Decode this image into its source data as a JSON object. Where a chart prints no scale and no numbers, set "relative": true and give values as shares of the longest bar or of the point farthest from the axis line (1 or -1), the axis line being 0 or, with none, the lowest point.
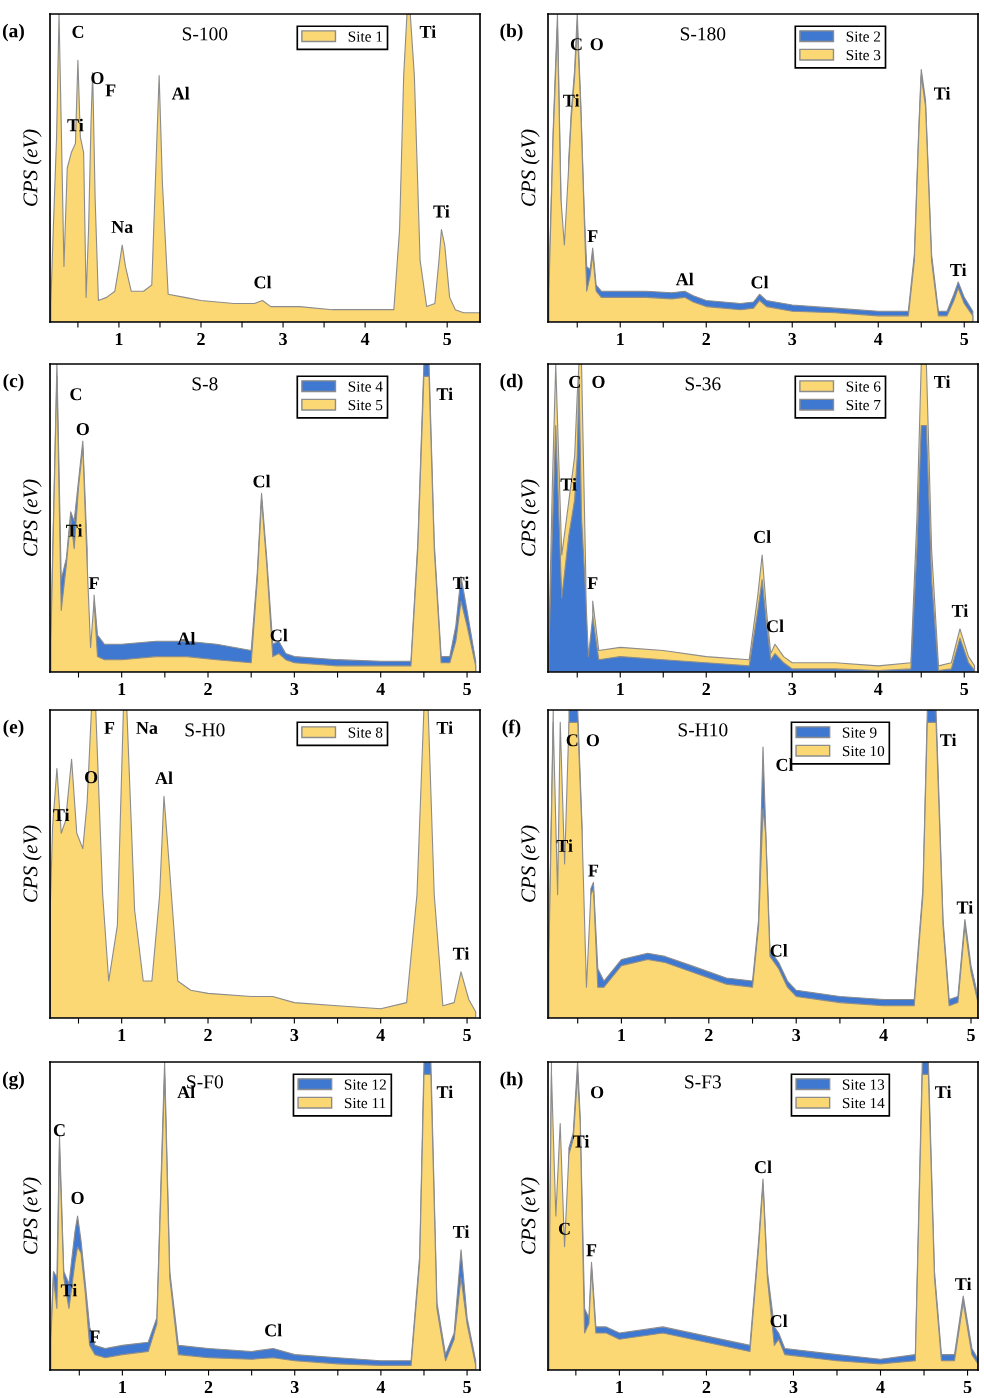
{
  "chart_data": [
    {
      "type": "area",
      "relative": true,
      "title": "S-100",
      "ylabel": "CPS (eV)",
      "legend": "top",
      "tick_labels": "x",
      "xlim": [
        0.16,
        5.4
      ],
      "xticks": [
        {
          "value": 0.5,
          "label": null
        },
        1,
        {
          "value": 1.5,
          "label": null
        },
        2,
        {
          "value": 2.5,
          "label": null
        },
        3,
        {
          "value": 3.5,
          "label": null
        },
        4,
        {
          "value": 4.5,
          "label": null
        },
        5
      ],
      "x": [
        0.17,
        0.2,
        0.24,
        0.27,
        0.3,
        0.33,
        0.37,
        0.42,
        0.47,
        0.5,
        0.53,
        0.57,
        0.6,
        0.63,
        0.66,
        0.68,
        0.71,
        0.75,
        0.85,
        0.95,
        1.0,
        1.04,
        1.08,
        1.15,
        1.3,
        1.4,
        1.45,
        1.49,
        1.53,
        1.6,
        1.8,
        2.0,
        2.4,
        2.65,
        2.75,
        2.85,
        3.2,
        3.6,
        4.0,
        4.35,
        4.42,
        4.47,
        4.51,
        4.55,
        4.6,
        4.67,
        4.75,
        4.85,
        4.9,
        4.93,
        4.97,
        5.03,
        5.1,
        5.2,
        5.4
      ],
      "series": [
        {
          "name": "Site 1",
          "color": "#fbd874",
          "values": [
            0.06,
            0.3,
            0.6,
            1,
            0.6,
            0.18,
            0.5,
            0.55,
            0.58,
            0.85,
            0.6,
            0.55,
            0.08,
            0.3,
            0.65,
            0.81,
            0.4,
            0.07,
            0.08,
            0.1,
            0.18,
            0.25,
            0.18,
            0.1,
            0.1,
            0.12,
            0.5,
            0.8,
            0.45,
            0.09,
            0.08,
            0.07,
            0.06,
            0.06,
            0.07,
            0.05,
            0.05,
            0.04,
            0.04,
            0.04,
            0.3,
            0.8,
            1,
            1,
            0.8,
            0.2,
            0.05,
            0.06,
            0.2,
            0.3,
            0.25,
            0.08,
            0.04,
            0.03,
            0.03
          ]
        }
      ],
      "annotations": [
        "(a)",
        {
          "text": "C",
          "x": 0.27,
          "y": 1
        },
        {
          "text": "O",
          "x": 0.5,
          "y": 0.85
        },
        {
          "text": "F",
          "x": 0.68,
          "y": 0.81
        },
        {
          "text": "Ti",
          "x": 0.47,
          "y": 0.58
        },
        {
          "text": "Al",
          "x": 1.49,
          "y": 0.8
        },
        {
          "text": "Na",
          "x": 1.04,
          "y": 0.25
        },
        {
          "text": "Cl",
          "x": 2.75,
          "y": 0.07
        },
        {
          "text": "Ti",
          "x": 4.51,
          "y": 1
        },
        {
          "text": "Ti",
          "x": 4.93,
          "y": 0.3
        }
      ]
    },
    {
      "type": "area",
      "relative": true,
      "title": "S-180",
      "ylabel": "CPS (eV)",
      "legend": "top",
      "tick_labels": "x",
      "xlim": [
        0.16,
        5.16
      ],
      "xticks": [
        {
          "value": 0.5,
          "label": null
        },
        1,
        {
          "value": 1.5,
          "label": null
        },
        2,
        {
          "value": 2.5,
          "label": null
        },
        3,
        {
          "value": 3.5,
          "label": null
        },
        4,
        {
          "value": 4.5,
          "label": null
        },
        5
      ],
      "x": [
        0.17,
        0.22,
        0.27,
        0.31,
        0.35,
        0.4,
        0.43,
        0.47,
        0.5,
        0.54,
        0.58,
        0.61,
        0.65,
        0.68,
        0.72,
        0.78,
        1.0,
        1.3,
        1.6,
        1.75,
        1.85,
        2.0,
        2.4,
        2.55,
        2.62,
        2.7,
        3.0,
        3.5,
        4.0,
        4.35,
        4.42,
        4.47,
        4.5,
        4.55,
        4.62,
        4.7,
        4.8,
        4.88,
        4.93,
        5.0,
        5.1
      ],
      "series": [
        {
          "name": "Site 2",
          "color": "#3f78d0",
          "values": [
            0.12,
            0.62,
            1,
            0.42,
            null,
            0.52,
            0.68,
            0.82,
            1,
            0.72,
            0.37,
            0.18,
            0.17,
            0.24,
            0.12,
            0.1,
            0.1,
            0.1,
            0.095,
            0.1,
            0.085,
            0.07,
            0.06,
            0.065,
            0.09,
            0.07,
            0.055,
            0.045,
            0.035,
            0.035,
            0.22,
            0.62,
            0.82,
            0.72,
            0.22,
            0.035,
            0.035,
            0.09,
            0.13,
            0.08,
            0.035
          ]
        },
        {
          "name": "Site 3",
          "color": "#fbd874",
          "values": [
            0.1,
            0.6,
            0.96,
            0.4,
            0.25,
            0.5,
            0.66,
            0.8,
            0.96,
            0.7,
            0.35,
            0.1,
            0.15,
            0.22,
            0.1,
            0.08,
            0.08,
            0.08,
            0.075,
            0.08,
            0.065,
            0.05,
            0.04,
            0.045,
            0.07,
            0.05,
            0.035,
            0.03,
            0.02,
            0.02,
            0.2,
            0.6,
            0.8,
            0.7,
            0.2,
            0.02,
            0.02,
            0.07,
            0.11,
            0.06,
            0.02
          ]
        }
      ],
      "annotations": [
        "(b)",
        {
          "text": "C",
          "x": 0.27,
          "y": 0.96
        },
        {
          "text": "O",
          "x": 0.5,
          "y": 0.96
        },
        {
          "text": "Ti",
          "x": 0.43,
          "y": 0.66
        },
        {
          "text": "F",
          "x": 0.68,
          "y": 0.22
        },
        {
          "text": "Al",
          "x": 1.75,
          "y": 0.08
        },
        {
          "text": "Cl",
          "x": 2.62,
          "y": 0.07
        },
        {
          "text": "Ti",
          "x": 4.5,
          "y": 0.8
        },
        {
          "text": "Ti",
          "x": 4.93,
          "y": 0.11
        }
      ]
    },
    {
      "type": "area",
      "relative": true,
      "title": "S-8",
      "ylabel": "CPS (eV)",
      "legend": "top",
      "tick_labels": "x",
      "xlim": [
        0.17,
        5.15
      ],
      "xticks": [
        {
          "value": 0.5,
          "label": null
        },
        1,
        {
          "value": 1.5,
          "label": null
        },
        2,
        {
          "value": 2.5,
          "label": null
        },
        3,
        {
          "value": 3.5,
          "label": null
        },
        4,
        {
          "value": 4.5,
          "label": null
        },
        5
      ],
      "x": [
        0.18,
        0.22,
        0.25,
        0.3,
        0.36,
        0.41,
        0.45,
        0.5,
        0.55,
        0.6,
        0.64,
        0.68,
        0.72,
        0.8,
        1.0,
        1.4,
        1.75,
        2.1,
        2.5,
        2.57,
        2.62,
        2.68,
        2.75,
        2.82,
        2.9,
        3.0,
        3.5,
        4.0,
        4.35,
        4.43,
        4.5,
        4.56,
        4.62,
        4.7,
        4.8,
        4.87,
        4.93,
        5.0,
        5.1
      ],
      "series": [
        {
          "name": "Site 4",
          "color": "#3f78d0",
          "values": [
            0.12,
            0.62,
            1,
            0.3,
            0.37,
            0.52,
            0.49,
            0.62,
            0.75,
            0.4,
            null,
            0.25,
            0.12,
            0.09,
            0.09,
            0.1,
            0.1,
            0.09,
            0.07,
            0.32,
            0.58,
            0.37,
            0.09,
            0.1,
            0.06,
            0.05,
            0.04,
            0.035,
            0.035,
            0.42,
            1,
            1,
            0.42,
            0.05,
            0.05,
            0.15,
            0.31,
            0.2,
            0.035
          ]
        },
        {
          "name": "Site 5",
          "color": "#fbd874",
          "values": [
            0.1,
            0.6,
            0.96,
            0.2,
            0.35,
            0.5,
            0.4,
            0.6,
            0.73,
            0.35,
            0.08,
            0.23,
            0.05,
            0.04,
            0.04,
            0.05,
            0.05,
            0.04,
            0.03,
            0.3,
            0.56,
            0.35,
            0.05,
            0.06,
            0.04,
            0.03,
            0.02,
            0.02,
            0.02,
            0.4,
            0.96,
            0.96,
            0.4,
            0.03,
            0.03,
            0.1,
            0.23,
            0.15,
            0.02
          ]
        }
      ],
      "annotations": [
        "(c)",
        {
          "text": "C",
          "x": 0.25,
          "y": 0.96
        },
        {
          "text": "O",
          "x": 0.55,
          "y": 0.73
        },
        {
          "text": "Ti",
          "x": 0.45,
          "y": 0.4
        },
        {
          "text": "F",
          "x": 0.68,
          "y": 0.23
        },
        {
          "text": "Al",
          "x": 1.75,
          "y": 0.05
        },
        {
          "text": "Cl",
          "x": 2.62,
          "y": 0.56
        },
        {
          "text": "Cl",
          "x": 2.82,
          "y": 0.06
        },
        {
          "text": "Ti",
          "x": 4.5,
          "y": 0.96
        },
        {
          "text": "Ti",
          "x": 4.93,
          "y": 0.23
        }
      ]
    },
    {
      "type": "area",
      "relative": true,
      "title": "S-36",
      "ylabel": "CPS (eV)",
      "legend": "top",
      "tick_labels": "x",
      "xlim": [
        0.16,
        5.16
      ],
      "xticks": [
        {
          "value": 0.5,
          "label": null
        },
        1,
        {
          "value": 1.5,
          "label": null
        },
        2,
        {
          "value": 2.5,
          "label": null
        },
        3,
        {
          "value": 3.5,
          "label": null
        },
        4,
        {
          "value": 4.5,
          "label": null
        },
        5
      ],
      "x": [
        0.17,
        0.21,
        0.25,
        0.32,
        0.4,
        0.47,
        0.5,
        0.52,
        0.55,
        0.6,
        0.63,
        0.68,
        0.75,
        1.0,
        1.5,
        2.0,
        2.5,
        2.6,
        2.65,
        2.7,
        2.75,
        2.8,
        2.9,
        3.0,
        3.5,
        4.0,
        4.38,
        4.45,
        4.5,
        4.56,
        4.62,
        4.7,
        4.85,
        4.95,
        5.05,
        5.12
      ],
      "series": [
        {
          "name": "Site 6",
          "color": "#fbd874",
          "values": [
            0.1,
            0.6,
            1,
            0.38,
            0.55,
            0.7,
            0.9,
            1,
            1,
            0.3,
            null,
            0.23,
            0.07,
            0.08,
            0.07,
            0.05,
            0.04,
            0.25,
            0.38,
            0.2,
            0.06,
            0.09,
            0.05,
            0.03,
            0.03,
            0.02,
            0.03,
            0.5,
            1,
            1,
            0.4,
            0.02,
            0.03,
            0.14,
            0.05,
            0.02
          ]
        },
        {
          "name": "Site 7",
          "color": "#3f78d0",
          "values": [
            0.07,
            0.45,
            0.8,
            0.24,
            0.44,
            0.56,
            0.7,
            0.96,
            0.5,
            0.24,
            0.05,
            0.18,
            0.04,
            0.05,
            0.04,
            0.03,
            0.02,
            0.2,
            0.3,
            0.16,
            0.04,
            0.06,
            0.03,
            0.01,
            0.01,
            0.005,
            0.01,
            0.4,
            0.8,
            0.8,
            0.3,
            0.005,
            0.01,
            0.11,
            0.03,
            0.005
          ]
        }
      ],
      "annotations": [
        "(d)",
        {
          "text": "C",
          "x": 0.25,
          "y": 1
        },
        {
          "text": "O",
          "x": 0.52,
          "y": 1
        },
        {
          "text": "Ti",
          "x": 0.4,
          "y": 0.55
        },
        {
          "text": "F",
          "x": 0.68,
          "y": 0.23
        },
        {
          "text": "Cl",
          "x": 2.65,
          "y": 0.38
        },
        {
          "text": "Cl",
          "x": 2.8,
          "y": 0.09
        },
        {
          "text": "Ti",
          "x": 4.5,
          "y": 1
        },
        {
          "text": "Ti",
          "x": 4.95,
          "y": 0.14
        }
      ]
    },
    {
      "type": "area",
      "relative": true,
      "title": "S-H0",
      "ylabel": "CPS (eV)",
      "legend": "top",
      "tick_labels": "x",
      "xlim": [
        0.17,
        5.15
      ],
      "xticks": [
        {
          "value": 0.5,
          "label": null
        },
        1,
        {
          "value": 1.5,
          "label": null
        },
        2,
        {
          "value": 2.5,
          "label": null
        },
        3,
        {
          "value": 3.5,
          "label": null
        },
        4,
        {
          "value": 4.5,
          "label": null
        },
        5
      ],
      "x": [
        0.17,
        0.2,
        0.25,
        0.3,
        0.35,
        0.42,
        0.48,
        0.55,
        0.6,
        0.65,
        0.7,
        0.78,
        0.85,
        0.95,
        1.02,
        1.06,
        1.15,
        1.25,
        1.35,
        1.44,
        1.49,
        1.55,
        1.65,
        1.8,
        2.0,
        2.5,
        2.75,
        3.0,
        3.5,
        4.0,
        4.3,
        4.42,
        4.5,
        4.55,
        4.62,
        4.72,
        4.85,
        4.93,
        5.02,
        5.1
      ],
      "series": [
        {
          "name": "Site 8",
          "color": "#fbd874",
          "values": [
            0.33,
            0.62,
            0.81,
            0.6,
            0.64,
            0.84,
            0.6,
            0.55,
            0.7,
            1,
            1,
            0.4,
            0.12,
            0.3,
            1,
            1,
            0.35,
            0.12,
            0.12,
            0.4,
            0.72,
            0.5,
            0.12,
            0.09,
            0.08,
            0.07,
            0.07,
            0.05,
            0.04,
            0.03,
            0.05,
            0.4,
            1,
            1,
            0.4,
            0.04,
            0.05,
            0.15,
            0.06,
            0.02
          ]
        }
      ],
      "annotations": [
        "(e)",
        {
          "text": "O",
          "x": 0.42,
          "y": 0.84
        },
        {
          "text": "Ti",
          "x": 0.3,
          "y": 0.6
        },
        {
          "text": "F",
          "x": 0.65,
          "y": 1
        },
        {
          "text": "Na",
          "x": 1.02,
          "y": 1
        },
        {
          "text": "Al",
          "x": 1.49,
          "y": 0.72
        },
        {
          "text": "Ti",
          "x": 4.5,
          "y": 1
        },
        {
          "text": "Ti",
          "x": 4.93,
          "y": 0.15
        }
      ]
    },
    {
      "type": "area",
      "relative": true,
      "title": "S-H10",
      "ylabel": "CPS (eV)",
      "legend": "top",
      "tick_labels": "x",
      "xlim": [
        0.16,
        5.08
      ],
      "xticks": [
        {
          "value": 0.5,
          "label": null
        },
        1,
        {
          "value": 1.5,
          "label": null
        },
        2,
        {
          "value": 2.5,
          "label": null
        },
        3,
        {
          "value": 3.5,
          "label": null
        },
        4,
        {
          "value": 4.5,
          "label": null
        },
        5
      ],
      "x": [
        0.17,
        0.22,
        0.27,
        0.3,
        0.35,
        0.4,
        0.45,
        0.5,
        0.55,
        0.6,
        0.65,
        0.68,
        0.73,
        0.8,
        1.0,
        1.3,
        1.5,
        1.8,
        2.2,
        2.5,
        2.57,
        2.62,
        2.65,
        2.7,
        2.8,
        2.9,
        3.0,
        3.5,
        4.0,
        4.35,
        4.45,
        4.5,
        4.6,
        4.68,
        4.75,
        4.85,
        4.93,
        5.0,
        5.08
      ],
      "series": [
        {
          "name": "Site 9",
          "color": "#3f78d0",
          "values": [
            0.22,
            1,
            null,
            null,
            null,
            1,
            1,
            1,
            0.62,
            null,
            0.42,
            0.44,
            0.16,
            0.12,
            0.19,
            0.21,
            0.2,
            0.17,
            0.13,
            0.12,
            0.32,
            0.88,
            0.62,
            0.22,
            0.18,
            0.12,
            0.09,
            0.07,
            0.06,
            0.06,
            0.42,
            1,
            1,
            0.32,
            0.06,
            0.07,
            0.32,
            0.17,
            0.07
          ]
        },
        {
          "name": "Site 10",
          "color": "#fbd874",
          "values": [
            0.2,
            0.96,
            0.4,
            0.96,
            0.5,
            0.96,
            0.96,
            0.96,
            0.6,
            0.1,
            0.4,
            0.42,
            0.1,
            0.1,
            0.17,
            0.19,
            0.18,
            0.15,
            0.11,
            0.1,
            0.3,
            0.68,
            0.6,
            0.2,
            0.16,
            0.1,
            0.07,
            0.05,
            0.04,
            0.04,
            0.4,
            0.96,
            0.96,
            0.3,
            0.04,
            0.05,
            0.3,
            0.15,
            0.05
          ]
        }
      ],
      "annotations": [
        "(f)",
        {
          "text": "C",
          "x": 0.22,
          "y": 0.96
        },
        {
          "text": "O",
          "x": 0.45,
          "y": 0.96
        },
        {
          "text": "Ti",
          "x": 0.35,
          "y": 0.5
        },
        {
          "text": "F",
          "x": 0.68,
          "y": 0.42
        },
        {
          "text": "Cl",
          "x": 2.62,
          "y": 0.88
        },
        {
          "text": "Cl",
          "x": 2.8,
          "y": 0.16
        },
        {
          "text": "Ti",
          "x": 4.5,
          "y": 0.96
        },
        {
          "text": "Ti",
          "x": 4.93,
          "y": 0.3
        }
      ]
    },
    {
      "type": "area",
      "relative": true,
      "title": "S-F0",
      "ylabel": "CPS (eV)",
      "legend": "top",
      "tick_labels": "x",
      "xlim": [
        0.16,
        5.15
      ],
      "xticks": [
        {
          "value": 0.5,
          "label": null
        },
        1,
        {
          "value": 1.5,
          "label": null
        },
        2,
        {
          "value": 2.5,
          "label": null
        },
        3,
        {
          "value": 3.5,
          "label": null
        },
        4,
        {
          "value": 4.5,
          "label": null
        },
        5
      ],
      "x": [
        0.17,
        0.2,
        0.24,
        0.27,
        0.32,
        0.38,
        0.45,
        0.48,
        0.52,
        0.57,
        0.62,
        0.68,
        0.8,
        1.0,
        1.3,
        1.4,
        1.49,
        1.55,
        1.65,
        2.0,
        2.5,
        2.75,
        3.0,
        3.5,
        4.0,
        4.35,
        4.45,
        4.5,
        4.58,
        4.65,
        4.75,
        4.85,
        4.93,
        5.0,
        5.1
      ],
      "series": [
        {
          "name": "Site 12",
          "color": "#3f78d0",
          "values": [
            0.12,
            0.32,
            0.3,
            0.76,
            0.32,
            0.28,
            0.45,
            0.5,
            0.42,
            0.28,
            0.14,
            0.08,
            0.07,
            0.08,
            0.09,
            0.17,
            1,
            0.32,
            0.08,
            0.07,
            0.06,
            0.07,
            0.05,
            0.04,
            0.03,
            0.03,
            0.37,
            1,
            1,
            0.22,
            0.05,
            0.12,
            0.39,
            0.17,
            0.03
          ]
        },
        {
          "name": "Site 11",
          "color": "#fbd874",
          "values": [
            0.1,
            0.3,
            0.2,
            0.72,
            0.3,
            0.2,
            0.35,
            0.4,
            0.38,
            0.25,
            0.08,
            0.05,
            0.04,
            0.05,
            0.06,
            0.15,
            0.96,
            0.3,
            0.05,
            0.04,
            0.035,
            0.04,
            0.03,
            0.02,
            0.015,
            0.015,
            0.35,
            0.96,
            0.96,
            0.2,
            0.03,
            0.1,
            0.3,
            0.15,
            0.015
          ]
        }
      ],
      "annotations": [
        "(g)",
        {
          "text": "C",
          "x": 0.27,
          "y": 0.72
        },
        {
          "text": "O",
          "x": 0.48,
          "y": 0.5
        },
        {
          "text": "Ti",
          "x": 0.38,
          "y": 0.2
        },
        {
          "text": "F",
          "x": 0.68,
          "y": 0.05
        },
        {
          "text": "Al",
          "x": 1.49,
          "y": 0.96
        },
        {
          "text": "Cl",
          "x": 2.75,
          "y": 0.07
        },
        {
          "text": "Ti",
          "x": 4.5,
          "y": 0.96
        },
        {
          "text": "Ti",
          "x": 4.93,
          "y": 0.39
        }
      ]
    },
    {
      "type": "area",
      "relative": true,
      "title": "S-F3",
      "ylabel": "CPS (eV)",
      "legend": "top",
      "tick_labels": "x",
      "xlim": [
        0.18,
        5.12
      ],
      "xticks": [
        {
          "value": 0.5,
          "label": null
        },
        1,
        {
          "value": 1.5,
          "label": null
        },
        2,
        {
          "value": 2.5,
          "label": null
        },
        3,
        {
          "value": 3.5,
          "label": null
        },
        4,
        {
          "value": 4.5,
          "label": null
        },
        5
      ],
      "x": [
        0.19,
        0.22,
        0.27,
        0.32,
        0.37,
        0.42,
        0.47,
        0.52,
        0.55,
        0.6,
        0.65,
        0.68,
        0.73,
        0.85,
        1.0,
        1.5,
        2.0,
        2.5,
        2.6,
        2.65,
        2.7,
        2.78,
        2.83,
        2.9,
        3.5,
        4.0,
        4.4,
        4.48,
        4.55,
        4.62,
        4.7,
        4.85,
        4.95,
        5.05,
        5.12
      ],
      "series": [
        {
          "name": "Site 13",
          "color": "#3f78d0",
          "values": [
            0.22,
            1,
            null,
            null,
            null,
            0.72,
            0.77,
            1,
            0.82,
            0.2,
            0.17,
            0.35,
            0.14,
            0.14,
            0.12,
            0.14,
            0.11,
            0.08,
            0.42,
            0.62,
            0.32,
            0.14,
            0.12,
            0.07,
            0.05,
            0.035,
            0.05,
            1,
            1,
            0.32,
            0.05,
            0.05,
            0.24,
            0.07,
            0.035
          ]
        },
        {
          "name": "Site 14",
          "color": "#fbd874",
          "values": [
            0.2,
            0.96,
            0.5,
            0.8,
            0.4,
            0.7,
            0.75,
            0.96,
            0.8,
            0.12,
            0.15,
            0.33,
            0.12,
            0.12,
            0.1,
            0.12,
            0.09,
            0.06,
            0.4,
            0.6,
            0.3,
            0.08,
            0.1,
            0.05,
            0.03,
            0.02,
            0.03,
            0.96,
            0.96,
            0.3,
            0.03,
            0.03,
            0.22,
            0.05,
            0.02
          ]
        }
      ],
      "annotations": [
        "(h)",
        {
          "text": "O",
          "x": 0.52,
          "y": 0.96
        },
        {
          "text": "Ti",
          "x": 0.32,
          "y": 0.8
        },
        {
          "text": "C",
          "x": 0.37,
          "y": 0.4
        },
        {
          "text": "F",
          "x": 0.68,
          "y": 0.33
        },
        {
          "text": "Cl",
          "x": 2.65,
          "y": 0.6
        },
        {
          "text": "Cl",
          "x": 2.83,
          "y": 0.1
        },
        {
          "text": "Ti",
          "x": 4.48,
          "y": 0.96
        },
        {
          "text": "Ti",
          "x": 4.95,
          "y": 0.22
        }
      ]
    }
  ]
}
